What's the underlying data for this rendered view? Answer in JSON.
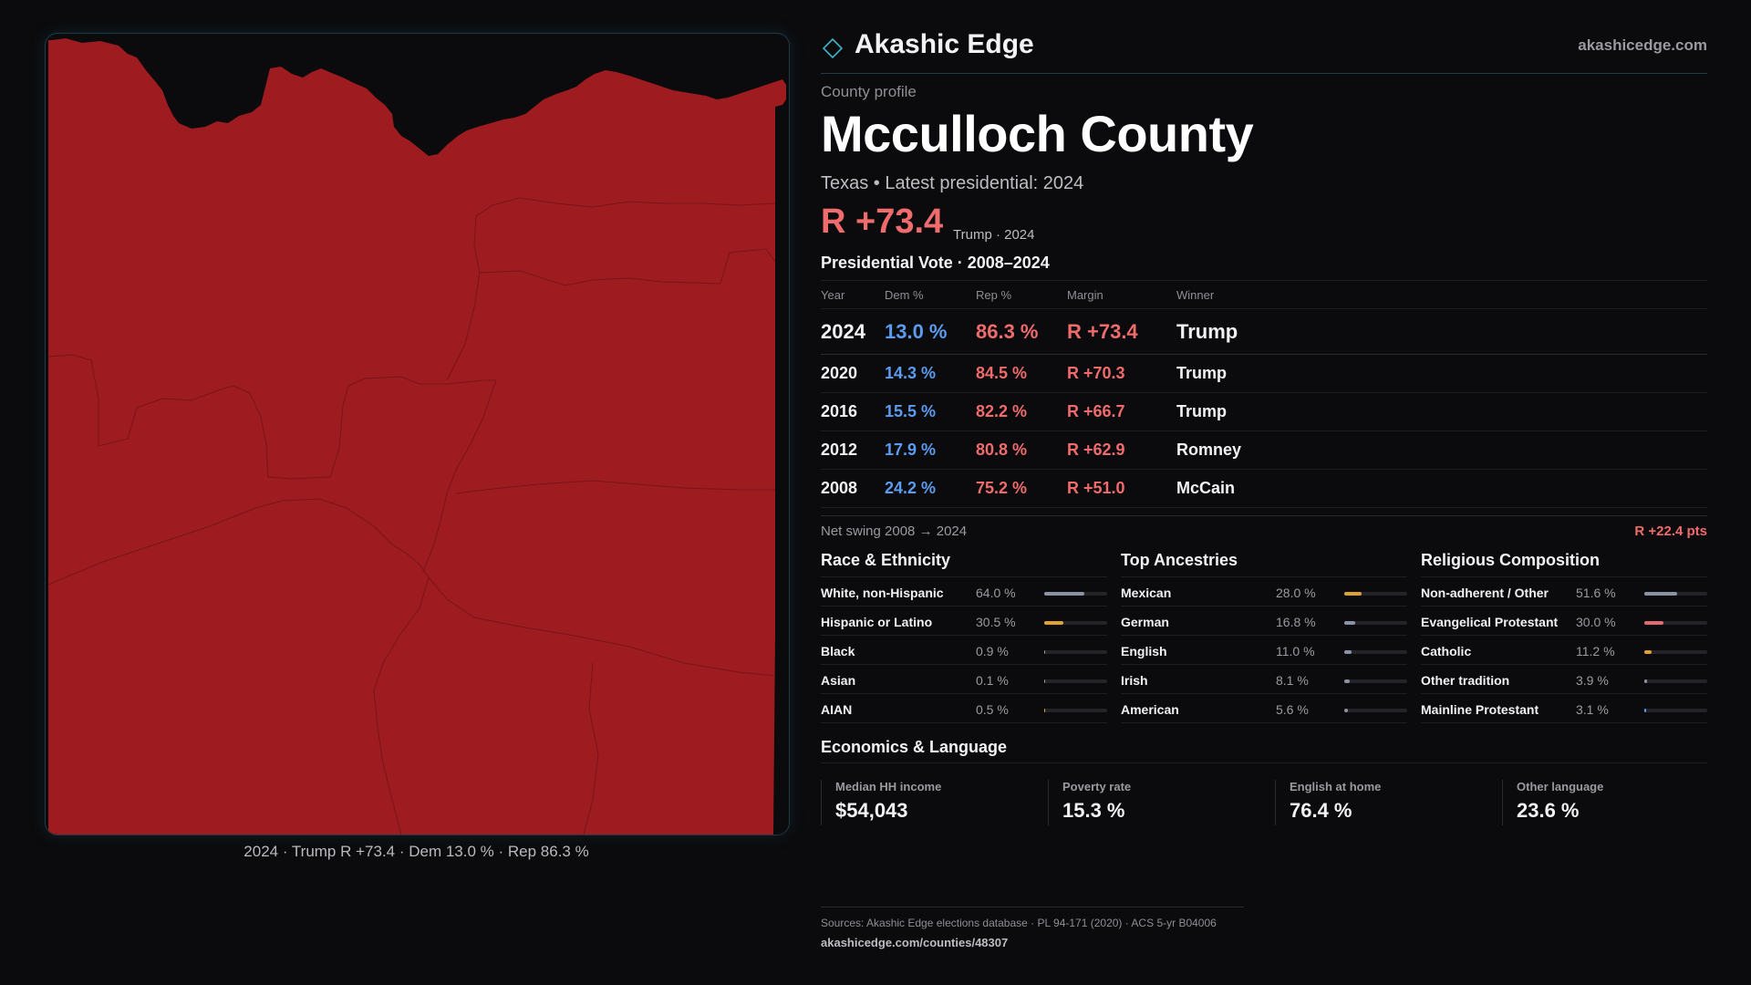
{
  "brand": {
    "name": "Akashic Edge",
    "url": "akashicedge.com"
  },
  "profile": {
    "eyebrow": "County profile",
    "county_name": "Mcculloch County",
    "subline": "Texas • Latest presidential: 2024",
    "margin": "R +73.4",
    "margin_note": "Trump · 2024"
  },
  "map": {
    "fill_color": "#9e1b1f",
    "boundary_color": "#7a1417",
    "caption": "2024 · Trump R +73.4 · Dem 13.0 % · Rep 86.3 %"
  },
  "vote_table": {
    "title": "Presidential Vote · 2008–2024",
    "headers": [
      "Year",
      "Dem %",
      "Rep %",
      "Margin",
      "Winner"
    ],
    "rows": [
      {
        "year": "2024",
        "dem": "13.0 %",
        "rep": "86.3 %",
        "margin": "R +73.4",
        "winner": "Trump"
      },
      {
        "year": "2020",
        "dem": "14.3 %",
        "rep": "84.5 %",
        "margin": "R +70.3",
        "winner": "Trump"
      },
      {
        "year": "2016",
        "dem": "15.5 %",
        "rep": "82.2 %",
        "margin": "R +66.7",
        "winner": "Trump"
      },
      {
        "year": "2012",
        "dem": "17.9 %",
        "rep": "80.8 %",
        "margin": "R +62.9",
        "winner": "Romney"
      },
      {
        "year": "2008",
        "dem": "24.2 %",
        "rep": "75.2 %",
        "margin": "R +51.0",
        "winner": "McCain"
      }
    ]
  },
  "swing": {
    "label": "Net swing 2008 → 2024",
    "value": "R +22.4 pts"
  },
  "race": {
    "title": "Race & Ethnicity",
    "items": [
      {
        "label": "White, non-Hispanic",
        "value": "64.0 %",
        "share": 64.0,
        "color": "#8a93a6"
      },
      {
        "label": "Hispanic or Latino",
        "value": "30.5 %",
        "share": 30.5,
        "color": "#e0a133"
      },
      {
        "label": "Black",
        "value": "0.9 %",
        "share": 0.9,
        "color": "#8a93a6"
      },
      {
        "label": "Asian",
        "value": "0.1 %",
        "share": 0.1,
        "color": "#8a93a6"
      },
      {
        "label": "AIAN",
        "value": "0.5 %",
        "share": 0.5,
        "color": "#e0a133"
      }
    ]
  },
  "ancestry": {
    "title": "Top Ancestries",
    "items": [
      {
        "label": "Mexican",
        "value": "28.0 %",
        "share": 28.0,
        "color": "#e0a133"
      },
      {
        "label": "German",
        "value": "16.8 %",
        "share": 16.8,
        "color": "#8a93a6"
      },
      {
        "label": "English",
        "value": "11.0 %",
        "share": 11.0,
        "color": "#8a93a6"
      },
      {
        "label": "Irish",
        "value": "8.1 %",
        "share": 8.1,
        "color": "#8a93a6"
      },
      {
        "label": "American",
        "value": "5.6 %",
        "share": 5.6,
        "color": "#8a93a6"
      }
    ]
  },
  "religion": {
    "title": "Religious Composition",
    "items": [
      {
        "label": "Non-adherent / Other",
        "value": "51.6 %",
        "share": 51.6,
        "color": "#8a93a6"
      },
      {
        "label": "Evangelical Protestant",
        "value": "30.0 %",
        "share": 30.0,
        "color": "#e06b73"
      },
      {
        "label": "Catholic",
        "value": "11.2 %",
        "share": 11.2,
        "color": "#e0a133"
      },
      {
        "label": "Other tradition",
        "value": "3.9 %",
        "share": 3.9,
        "color": "#8a93a6"
      },
      {
        "label": "Mainline Protestant",
        "value": "3.1 %",
        "share": 3.1,
        "color": "#5b9cf0"
      }
    ]
  },
  "economics": {
    "title": "Economics & Language",
    "cards": [
      {
        "label": "Median HH income",
        "value": "$54,043"
      },
      {
        "label": "Poverty rate",
        "value": "15.3 %"
      },
      {
        "label": "English at home",
        "value": "76.4 %"
      },
      {
        "label": "Other language",
        "value": "23.6 %"
      }
    ]
  },
  "footer": {
    "sources": "Sources: Akashic Edge elections database · PL 94-171 (2020) · ACS 5-yr B04006",
    "url": "akashicedge.com/counties/48307"
  }
}
